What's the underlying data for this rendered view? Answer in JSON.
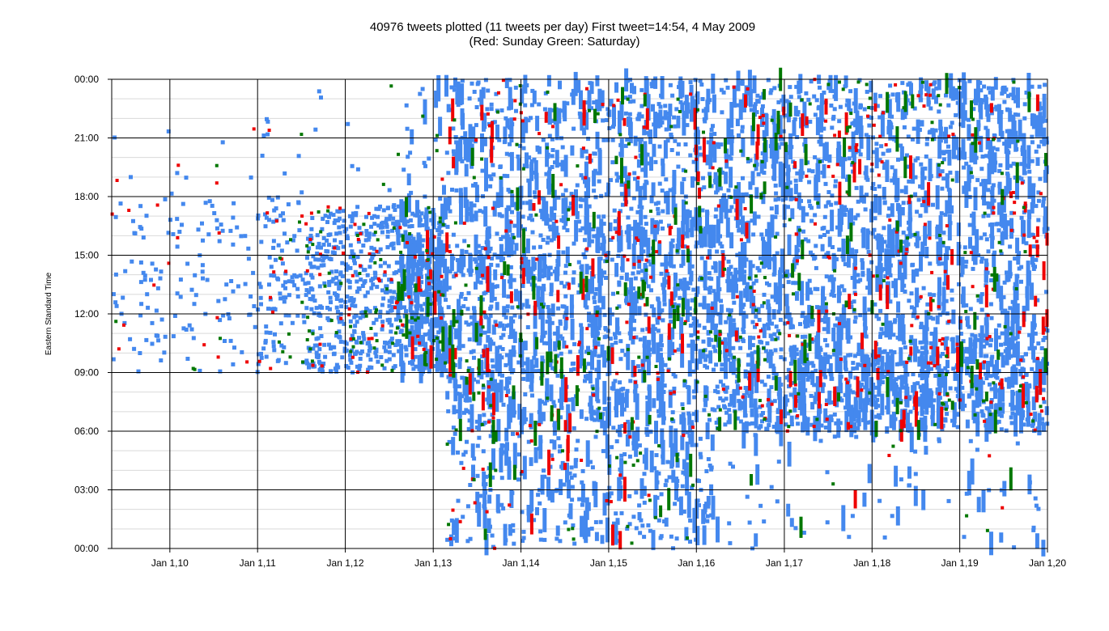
{
  "chart_data": {
    "type": "scatter",
    "title": "40976 tweets plotted  (11 tweets per day)  First tweet=14:54, 4 May 2009",
    "subtitle": "(Red: Sunday  Green: Saturday)",
    "xlabel": "",
    "ylabel": "Eastern Standard Time",
    "x_ticks": [
      "Jan 1,10",
      "Jan 1,11",
      "Jan 1,12",
      "Jan 1,13",
      "Jan 1,14",
      "Jan 1,15",
      "Jan 1,16",
      "Jan 1,17",
      "Jan 1,18",
      "Jan 1,19",
      "Jan 1,20"
    ],
    "y_ticks": [
      "00:00",
      "03:00",
      "06:00",
      "09:00",
      "12:00",
      "15:00",
      "18:00",
      "21:00",
      "00:00"
    ],
    "xlim": [
      "2009-05-04",
      "2020-01-01"
    ],
    "ylim": [
      0,
      24
    ],
    "grid": true,
    "series": [
      {
        "color": "#4488ee",
        "approx_count": 37500,
        "density_profile": [
          {
            "x": "2009-06",
            "y_range": [
              9,
              21
            ],
            "density": "sparse"
          },
          {
            "x": "2010-06",
            "y_range": [
              9,
              18
            ],
            "density": "sparse"
          },
          {
            "x": "2011-06",
            "y_range": [
              9,
              18
            ],
            "density": "sparse"
          },
          {
            "x": "2012-06",
            "y_range": [
              9,
              17.5
            ],
            "density": "dense"
          },
          {
            "x": "2013-01",
            "y_range": [
              9,
              17
            ],
            "density": "very dense"
          },
          {
            "x": "2014-01",
            "y_range": [
              0,
              24
            ],
            "density": "dense"
          },
          {
            "x": "2016-01",
            "y_range": [
              0,
              24
            ],
            "density": "dense"
          },
          {
            "x": "2018-06",
            "y_range": [
              6,
              24
            ],
            "density": "dense"
          },
          {
            "x": "2019-06",
            "y_range": [
              0,
              24
            ],
            "density": "dense"
          }
        ]
      },
      {
        "color": "#ee0000",
        "approx_count": 1800,
        "meaning": "Sunday"
      },
      {
        "color": "#007700",
        "approx_count": 1700,
        "meaning": "Saturday"
      }
    ]
  }
}
